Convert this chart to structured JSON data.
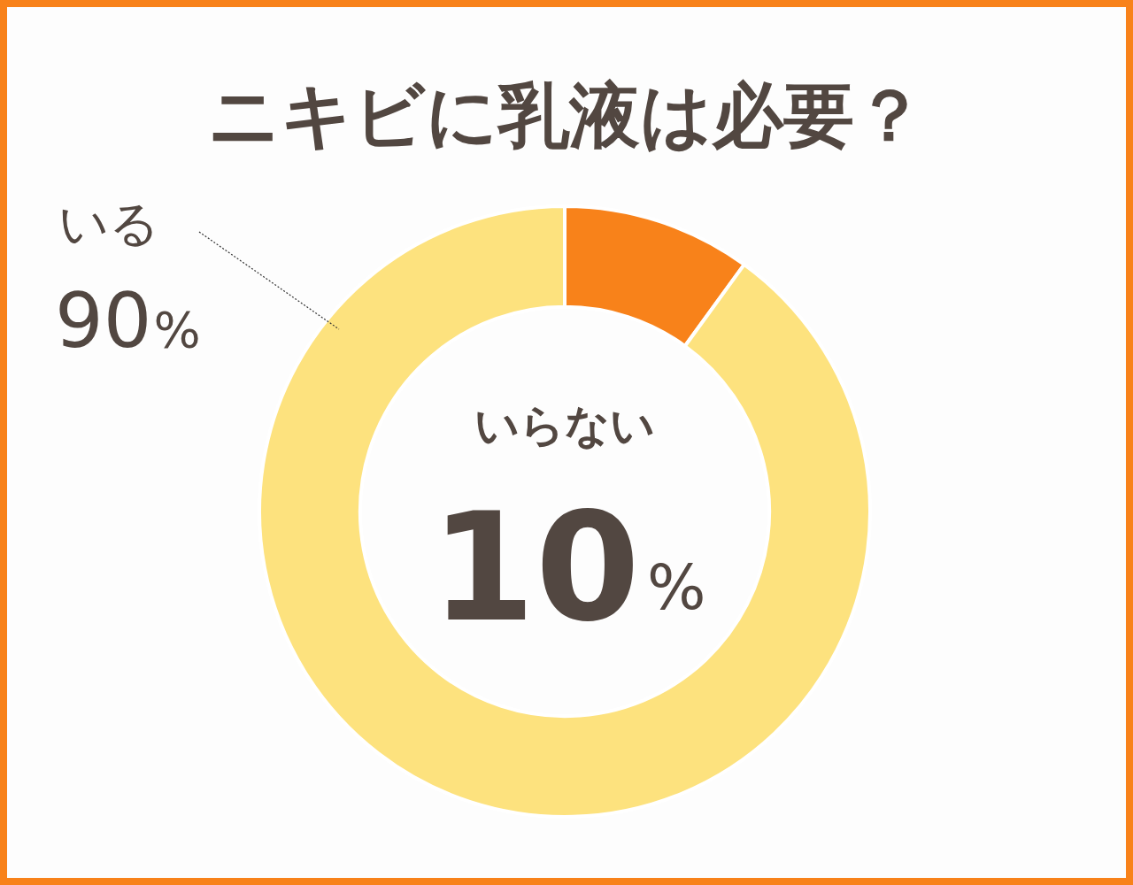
{
  "chart_data": {
    "type": "donut",
    "title": "ニキビに乳液は必要？",
    "categories": [
      "いらない",
      "いる"
    ],
    "values": [
      10,
      90
    ],
    "value_labels": [
      "10%",
      "90%"
    ],
    "colors": [
      "#f8821a",
      "#fde27e"
    ],
    "legend": false
  }
}
